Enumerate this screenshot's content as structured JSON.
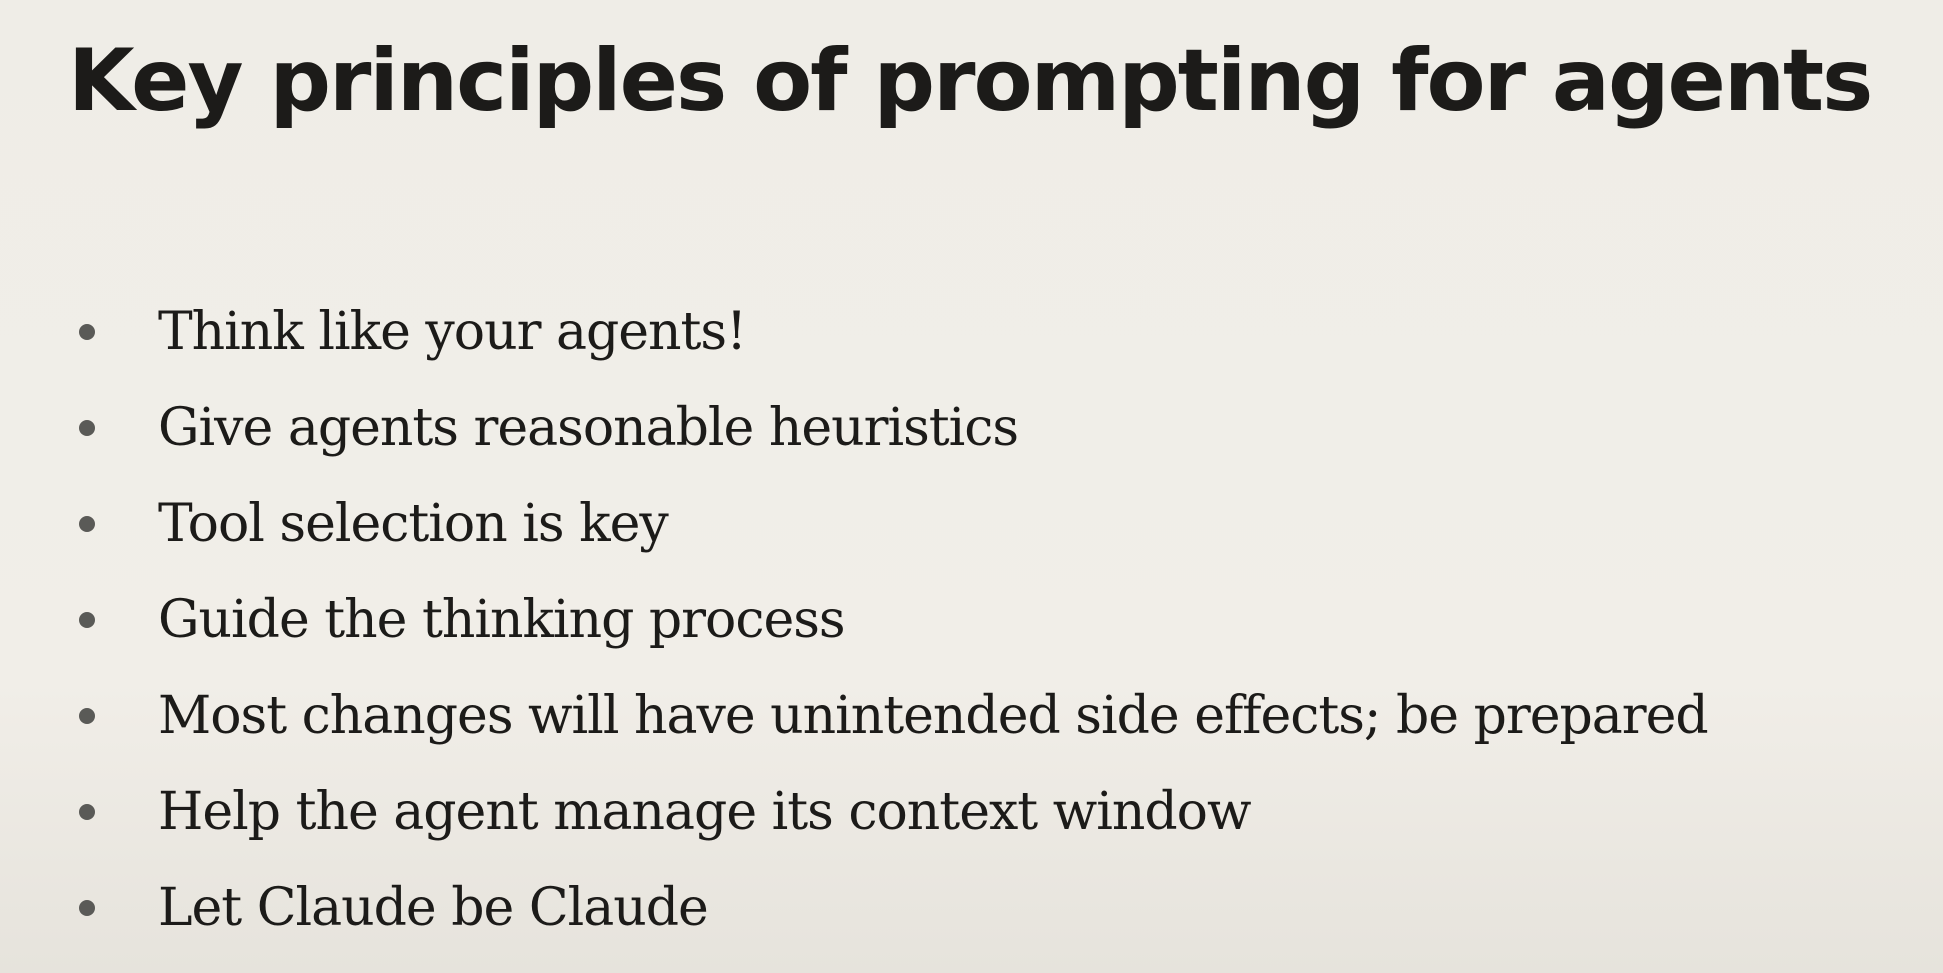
{
  "slide": {
    "title": "Key principles of prompting for agents",
    "bullets": [
      "Think like your agents!",
      "Give agents reasonable heuristics",
      "Tool selection is key",
      "Guide the thinking process",
      "Most changes will have unintended side effects; be prepared",
      "Help the agent manage its context window",
      "Let Claude be Claude"
    ]
  },
  "colors": {
    "background": "#f0ede6",
    "text": "#1c1b19",
    "bullet_dot": "#5a5a57"
  }
}
